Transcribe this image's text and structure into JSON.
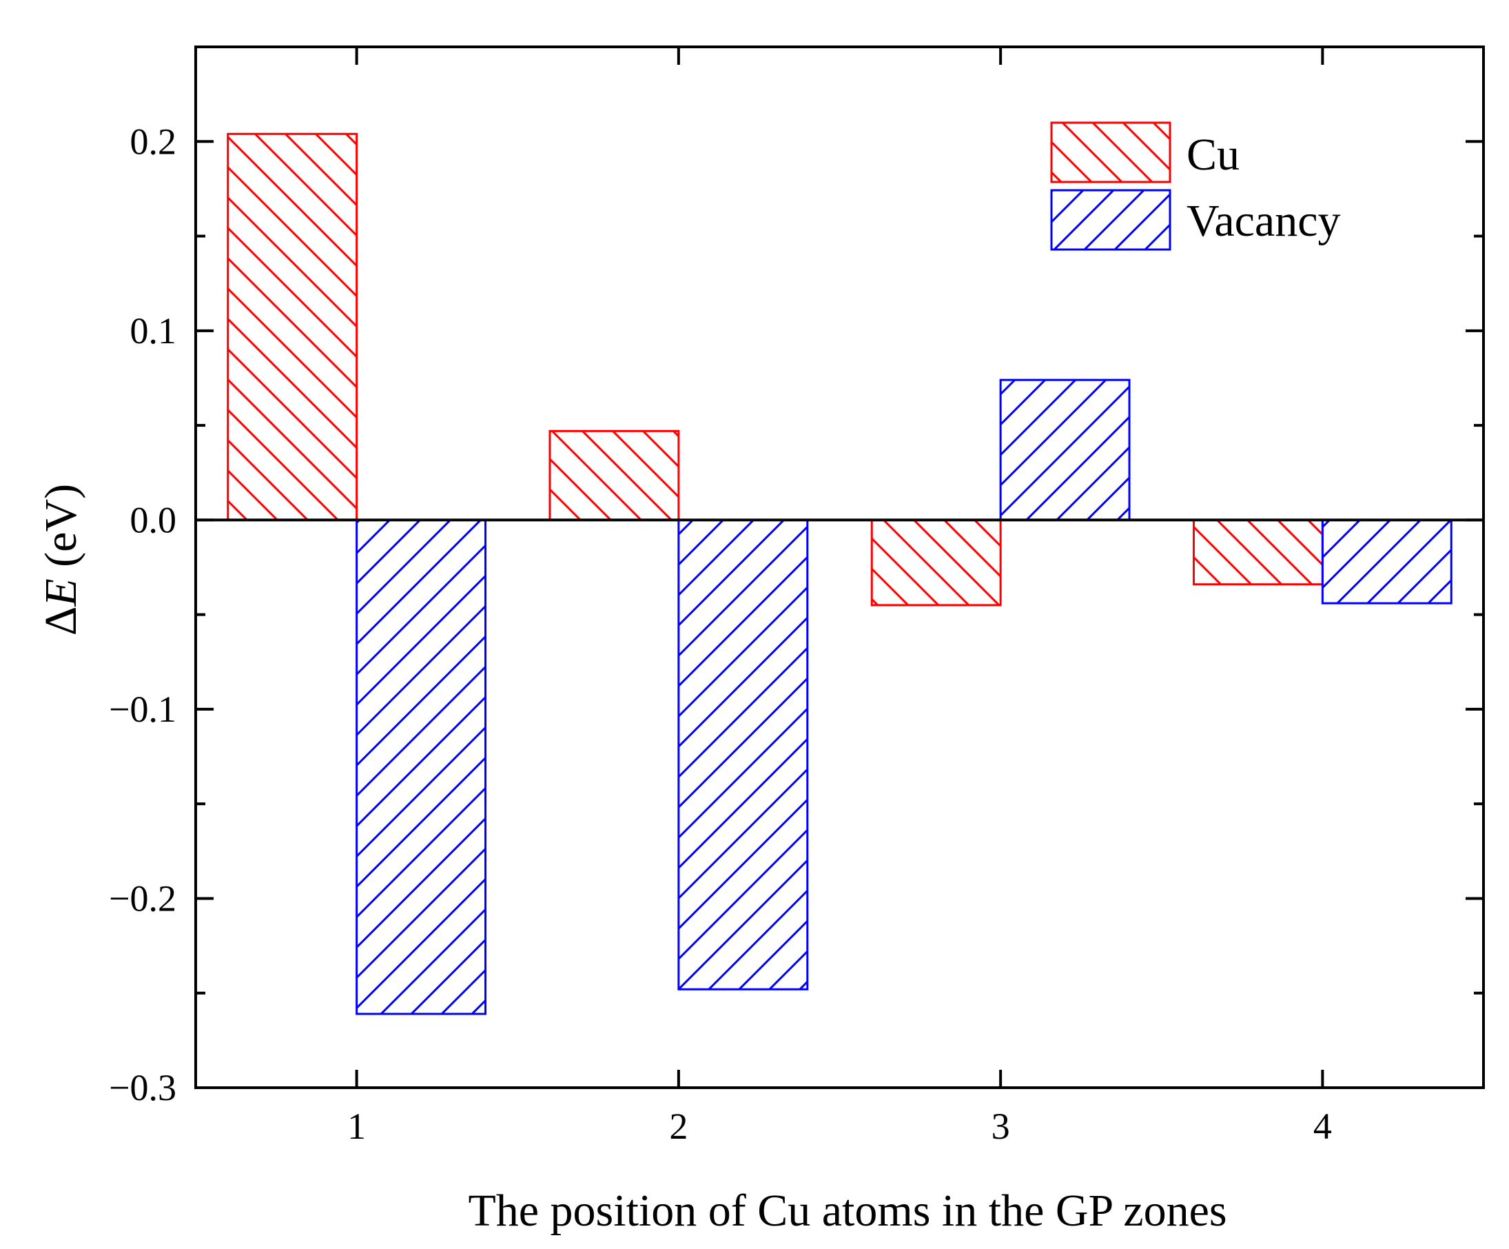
{
  "chart_data": {
    "type": "bar",
    "title": "",
    "xlabel": "The position of Cu atoms in the GP zones",
    "ylabel_symbol": "ΔE",
    "ylabel_prefix": "Δ",
    "ylabel_var": "E",
    "ylabel_unit": " (eV)",
    "categories": [
      "1",
      "2",
      "3",
      "4"
    ],
    "series": [
      {
        "name": "Cu",
        "color": "#ff0000",
        "hatch": "backslash",
        "values": [
          0.204,
          0.047,
          -0.045,
          -0.034
        ]
      },
      {
        "name": "Vacancy",
        "color": "#0000ff",
        "hatch": "slash",
        "values": [
          -0.261,
          -0.248,
          0.074,
          -0.044
        ]
      }
    ],
    "ylim": [
      -0.3,
      0.25
    ],
    "yticks": [
      -0.3,
      -0.2,
      -0.1,
      0.0,
      0.1,
      0.2
    ],
    "ytick_labels": [
      "−0.3",
      "−0.2",
      "−0.1",
      "0.0",
      "0.1",
      "0.2"
    ],
    "xlim": [
      0.5,
      4.5
    ],
    "grid": false,
    "legend_position": "top-right"
  }
}
